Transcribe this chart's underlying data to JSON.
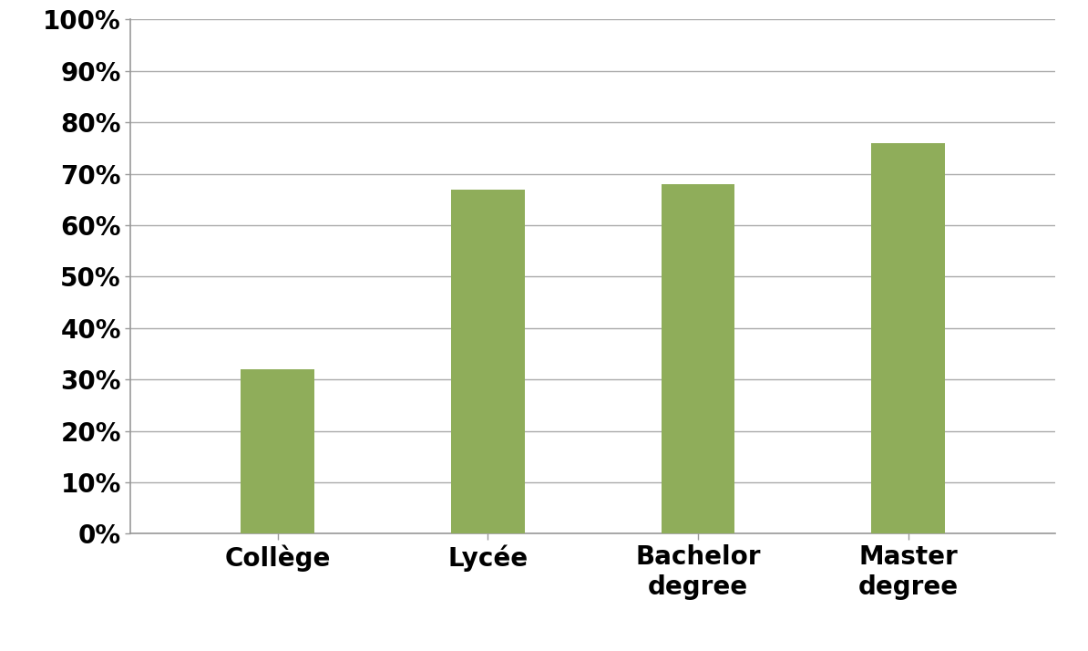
{
  "categories": [
    "Collège",
    "Lycée",
    "Bachelor\ndegree",
    "Master\ndegree"
  ],
  "values": [
    0.32,
    0.67,
    0.68,
    0.76
  ],
  "bar_color": "#8fad5a",
  "ylim": [
    0,
    1.0
  ],
  "yticks": [
    0.0,
    0.1,
    0.2,
    0.3,
    0.4,
    0.5,
    0.6,
    0.7,
    0.8,
    0.9,
    1.0
  ],
  "yticklabels": [
    "0%",
    "10%",
    "20%",
    "30%",
    "40%",
    "50%",
    "60%",
    "70%",
    "80%",
    "90%",
    "100%"
  ],
  "background_color": "#ffffff",
  "grid_color": "#aaaaaa",
  "ytick_fontsize": 20,
  "xtick_fontsize": 20,
  "bar_width": 0.35
}
